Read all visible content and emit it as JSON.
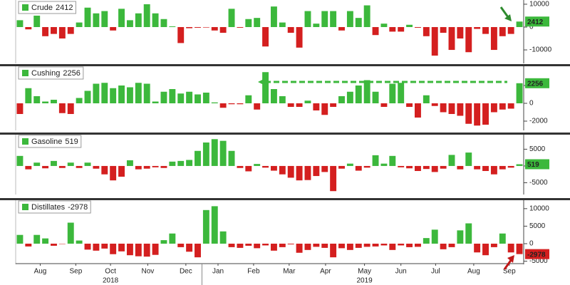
{
  "chart_data": [
    {
      "type": "bar",
      "legend": "upper left",
      "grid": false,
      "colors": {
        "positive": "#3cb83c",
        "negative": "#d41f1f"
      },
      "series": [
        {
          "name": "Crude",
          "values": [
            3000,
            -1000,
            5000,
            -4000,
            -3000,
            -5000,
            -3000,
            2000,
            8500,
            6000,
            7000,
            -1500,
            8000,
            3000,
            6000,
            10000,
            6000,
            3500,
            300,
            -7000,
            -500,
            -300,
            -200,
            -1500,
            -2500,
            8000,
            -300,
            3500,
            4000,
            -8500,
            9000,
            2000,
            -2500,
            -9000,
            7000,
            1500,
            7000,
            7000,
            -1500,
            7000,
            4000,
            9500,
            -3500,
            1500,
            -2000,
            -2000,
            1000,
            -300,
            -4000,
            -12500,
            -2500,
            -10000,
            -5000,
            -11000,
            -800,
            -3000,
            -10000,
            -4000,
            -3000,
            2412
          ]
        }
      ],
      "ylim": [
        -15600,
        10600
      ],
      "yticks": [
        10000,
        0,
        -10000
      ]
    },
    {
      "type": "bar",
      "legend": "upper left",
      "grid": false,
      "colors": {
        "positive": "#3cb83c",
        "negative": "#d41f1f"
      },
      "series": [
        {
          "name": "Cushing",
          "values": [
            -1200,
            1700,
            800,
            200,
            400,
            -1100,
            -1200,
            600,
            1400,
            2200,
            2300,
            1700,
            2000,
            1800,
            2300,
            2200,
            200,
            1300,
            1600,
            1100,
            1300,
            1000,
            1200,
            100,
            -500,
            -100,
            -100,
            900,
            -700,
            3500,
            1600,
            800,
            -400,
            -400,
            300,
            -800,
            -1300,
            -400,
            800,
            1300,
            2000,
            2600,
            1300,
            -400,
            2200,
            2300,
            -400,
            -1600,
            900,
            -300,
            -1000,
            -1200,
            -1400,
            -2300,
            -2500,
            -2400,
            -1000,
            -700,
            -600,
            2256
          ]
        }
      ],
      "ylim": [
        -2960,
        3920
      ],
      "yticks": [
        2000,
        0,
        -2000
      ]
    },
    {
      "type": "bar",
      "legend": "upper left",
      "grid": false,
      "colors": {
        "positive": "#3cb83c",
        "negative": "#d41f1f"
      },
      "series": [
        {
          "name": "Gasoline",
          "values": [
            3000,
            -1000,
            1000,
            -700,
            1500,
            -600,
            1000,
            -600,
            1000,
            -800,
            -2500,
            -4300,
            -3200,
            1700,
            -1000,
            -800,
            -400,
            -600,
            1300,
            1500,
            1800,
            4500,
            7000,
            8000,
            7500,
            4500,
            -600,
            -1600,
            600,
            -500,
            -1400,
            -2500,
            -3500,
            -4300,
            -4200,
            -3000,
            -1800,
            -7500,
            -800,
            700,
            -1400,
            -500,
            3200,
            700,
            3000,
            -400,
            -700,
            -1500,
            -900,
            -1800,
            -800,
            3300,
            -1000,
            4000,
            -1000,
            -1500,
            -2500,
            -1000,
            -500,
            519
          ]
        }
      ],
      "ylim": [
        -8300,
        8700
      ],
      "yticks": [
        5000,
        0,
        -5000
      ]
    },
    {
      "type": "bar",
      "legend": "upper left",
      "grid": false,
      "colors": {
        "positive": "#3cb83c",
        "negative": "#d41f1f"
      },
      "series": [
        {
          "name": "Distillates",
          "values": [
            2500,
            -800,
            2500,
            1500,
            -600,
            -100,
            6000,
            900,
            -1700,
            -2000,
            -1400,
            -3000,
            -2200,
            -3300,
            -3600,
            -3700,
            -3200,
            1000,
            2900,
            -1000,
            -2300,
            -3900,
            9600,
            10700,
            3500,
            -1000,
            -1200,
            -600,
            -1300,
            -500,
            -2000,
            -1000,
            -200,
            -2600,
            -1800,
            -900,
            -1200,
            -3900,
            -1300,
            -1800,
            -1200,
            -900,
            -800,
            -500,
            -1800,
            -500,
            -1000,
            -900,
            1600,
            4000,
            -1600,
            -1000,
            3800,
            5800,
            -2500,
            -3300,
            -1000,
            2900,
            -2500,
            -2978
          ]
        }
      ],
      "ylim": [
        -5700,
        11800
      ],
      "yticks": [
        10000,
        5000,
        0,
        -5000
      ]
    }
  ],
  "x_axis": {
    "xlim": [
      -0.5,
      59.5
    ],
    "xticks": [
      {
        "value": 2.4,
        "label": "Aug"
      },
      {
        "value": 6.6,
        "label": "Sep"
      },
      {
        "value": 10.7,
        "label": "Oct"
      },
      {
        "value": 15.1,
        "label": "Nov"
      },
      {
        "value": 19.6,
        "label": "Dec"
      },
      {
        "value": 23.4,
        "label": "Jan"
      },
      {
        "value": 27.6,
        "label": "Feb"
      },
      {
        "value": 31.8,
        "label": "Mar"
      },
      {
        "value": 36.1,
        "label": "Apr"
      },
      {
        "value": 40.7,
        "label": "May"
      },
      {
        "value": 45.0,
        "label": "Jun"
      },
      {
        "value": 49.1,
        "label": "Jul"
      },
      {
        "value": 53.6,
        "label": "Aug"
      },
      {
        "value": 57.8,
        "label": "Sep"
      }
    ],
    "year_ticks": [
      {
        "value": 10.7,
        "label": "2018"
      },
      {
        "value": 40.7,
        "label": "2019"
      }
    ]
  }
}
